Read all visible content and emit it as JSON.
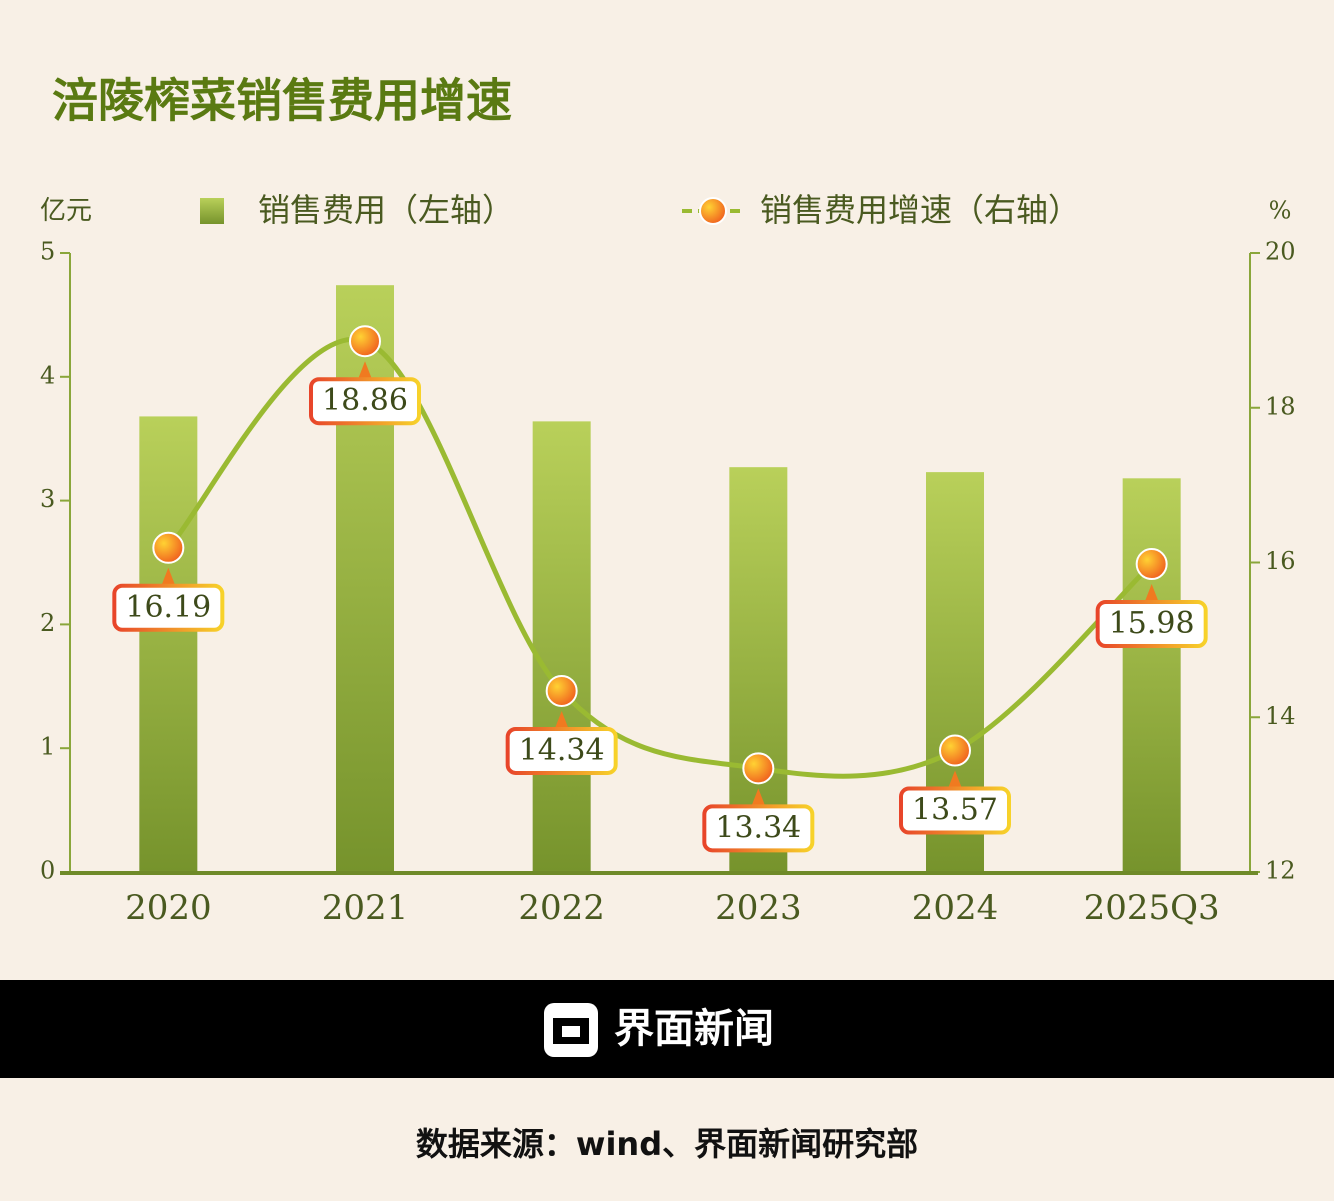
{
  "chart_data": {
    "type": "bar",
    "title": "涪陵榨菜销售费用增速",
    "y_unit": "亿元",
    "y2_unit": "%",
    "categories": [
      "2020",
      "2021",
      "2022",
      "2023",
      "2024",
      "2025Q3"
    ],
    "series": [
      {
        "name": "销售费用（左轴）",
        "type": "bar",
        "color": "#9dbb45",
        "values": [
          3.68,
          4.74,
          3.64,
          3.27,
          3.23,
          3.18
        ]
      },
      {
        "name": "销售费用增速（右轴）",
        "type": "line",
        "axis": "y2",
        "color": "#9aba32",
        "values": [
          16.19,
          18.86,
          14.34,
          13.34,
          13.57,
          15.98
        ]
      }
    ],
    "ylim": [
      0,
      5
    ],
    "yticks": [
      0,
      1,
      2,
      3,
      4,
      5
    ],
    "y2lim": [
      12,
      20
    ],
    "y2ticks": [
      12,
      14,
      16,
      18,
      20
    ]
  },
  "footer": {
    "brand": "界面新闻",
    "source": "数据来源：wind、界面新闻研究部"
  }
}
